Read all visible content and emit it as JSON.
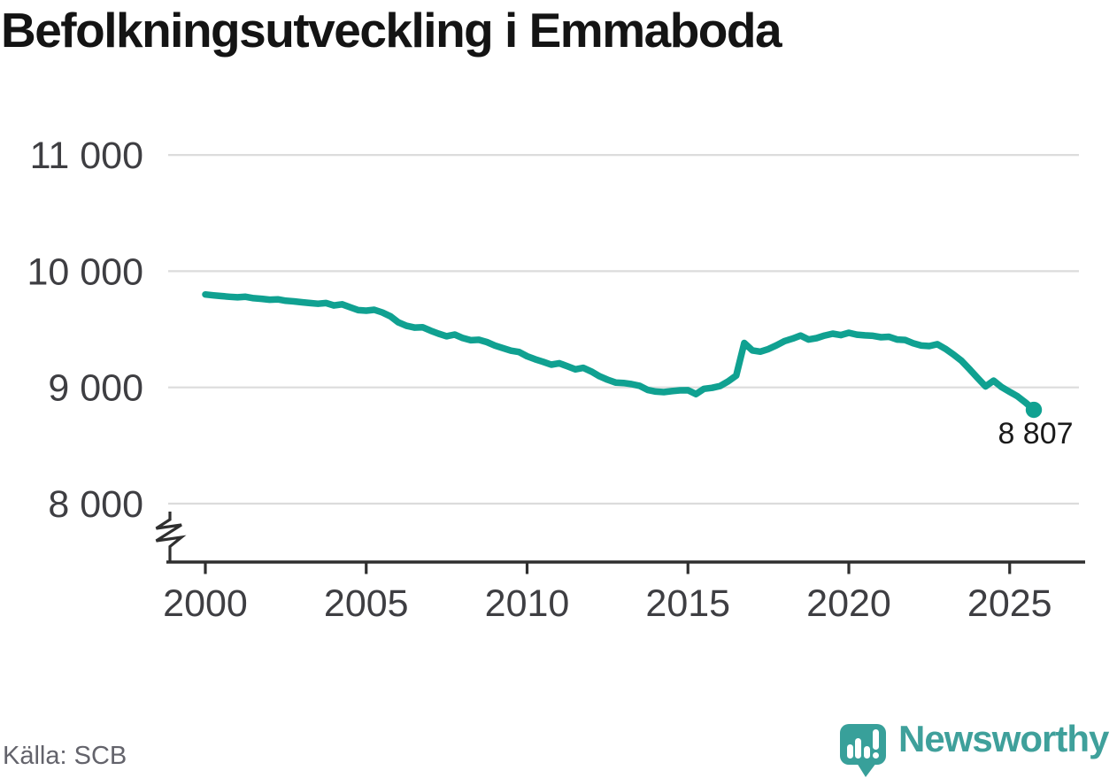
{
  "page": {
    "title": "Befolkningsutveckling i Emmaboda"
  },
  "source": {
    "label": "Källa: SCB"
  },
  "branding": {
    "wordmark": "Newsworthy",
    "icon": "newsworthy-speech-bubble-chart-icon",
    "icon_color": "#38a09a",
    "wordmark_color": "#3fa09b"
  },
  "chart_data": {
    "type": "line",
    "title": "Befolkningsutveckling i Emmaboda",
    "xlabel": "",
    "ylabel": "",
    "x_tick_labels": [
      "2000",
      "2005",
      "2010",
      "2015",
      "2020",
      "2025"
    ],
    "x_ticks": [
      2000,
      2005,
      2010,
      2015,
      2020,
      2025
    ],
    "y_ticks": [
      8000,
      9000,
      10000,
      11000
    ],
    "y_tick_labels": [
      "8 000",
      "9 000",
      "10 000",
      "11 000"
    ],
    "ylim": [
      7750,
      11150
    ],
    "xlim": [
      2000,
      2026.3
    ],
    "grid": "horizontal",
    "axis_break_at_bottom": true,
    "legend": "none",
    "line_color": "#10a191",
    "grid_color": "#dcdcdc",
    "axis_color": "#2f2f2f",
    "tick_label_color": "#3e3e42",
    "end_label": "8 807",
    "end_value": 8807,
    "series": [
      {
        "name": "Befolkning i Emmaboda",
        "x_start": 2000,
        "x_step": 0.25,
        "values": [
          9800,
          9792,
          9786,
          9780,
          9775,
          9780,
          9768,
          9762,
          9755,
          9758,
          9746,
          9740,
          9733,
          9726,
          9720,
          9726,
          9705,
          9715,
          9690,
          9665,
          9660,
          9668,
          9645,
          9612,
          9560,
          9530,
          9515,
          9518,
          9488,
          9462,
          9440,
          9455,
          9425,
          9406,
          9410,
          9390,
          9360,
          9338,
          9316,
          9305,
          9268,
          9242,
          9220,
          9196,
          9208,
          9182,
          9155,
          9168,
          9136,
          9096,
          9066,
          9042,
          9038,
          9028,
          9014,
          8978,
          8964,
          8960,
          8968,
          8975,
          8976,
          8942,
          8988,
          8996,
          9012,
          9052,
          9102,
          9382,
          9318,
          9308,
          9330,
          9362,
          9398,
          9420,
          9446,
          9412,
          9424,
          9446,
          9462,
          9450,
          9470,
          9454,
          9448,
          9444,
          9432,
          9436,
          9412,
          9408,
          9380,
          9360,
          9356,
          9372,
          9332,
          9284,
          9230,
          9158,
          9082,
          9008,
          9058,
          9002,
          8962,
          8922,
          8868,
          8807
        ]
      }
    ]
  }
}
